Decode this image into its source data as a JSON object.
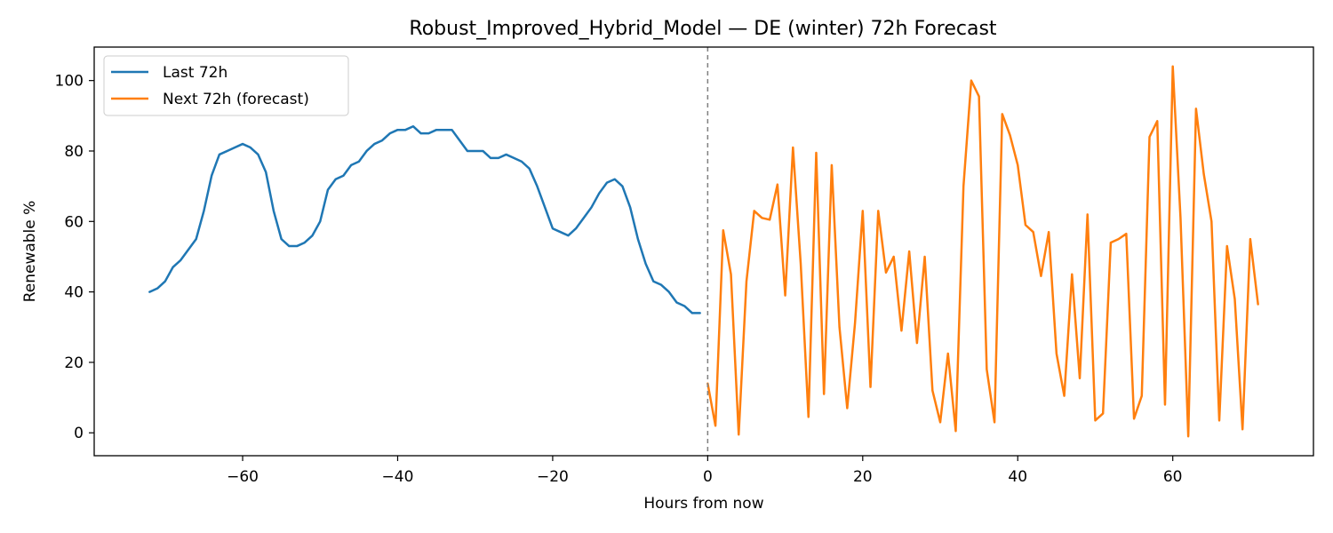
{
  "chart_data": {
    "type": "line",
    "title": "Robust_Improved_Hybrid_Model — DE (winter) 72h Forecast",
    "xlabel": "Hours from now",
    "ylabel": "Renewable %",
    "xlim": [
      -79.15,
      78.15
    ],
    "ylim": [
      -6.5,
      109.5
    ],
    "x_ticks": [
      -60,
      -40,
      -20,
      0,
      20,
      40,
      60
    ],
    "x_tick_labels": [
      "−60",
      "−40",
      "−20",
      "0",
      "20",
      "40",
      "60"
    ],
    "y_ticks": [
      0,
      20,
      40,
      60,
      80,
      100
    ],
    "y_tick_labels": [
      "0",
      "20",
      "40",
      "60",
      "80",
      "100"
    ],
    "grid": false,
    "legend_position": "top-left",
    "now_line": {
      "x": 0,
      "style": "dashed",
      "color": "#808080"
    },
    "series": [
      {
        "name": "Last 72h",
        "color": "#1f77b4",
        "x_start": -72,
        "step": 1,
        "values": [
          40,
          41,
          43,
          47,
          49,
          52,
          55,
          63,
          73,
          79,
          80,
          81,
          82,
          81,
          79,
          74,
          63,
          55,
          53,
          53,
          54,
          56,
          60,
          69,
          72,
          73,
          76,
          77,
          80,
          82,
          83,
          85,
          86,
          86,
          87,
          85,
          85,
          86,
          86,
          86,
          83,
          80,
          80,
          80,
          78,
          78,
          79,
          78,
          77,
          75,
          70,
          64,
          58,
          57,
          56,
          58,
          61,
          64,
          68,
          71,
          72,
          70,
          64,
          55,
          48,
          43,
          42,
          40,
          37,
          36,
          34,
          34
        ]
      },
      {
        "name": "Next 72h (forecast)",
        "color": "#ff7f0e",
        "x_start": 0,
        "step": 1,
        "values": [
          14,
          2,
          57.5,
          45,
          -0.5,
          43,
          63,
          61,
          60.5,
          70.5,
          39,
          81,
          48,
          4.5,
          79.5,
          11,
          76,
          30,
          7,
          31,
          63,
          13,
          63,
          45.5,
          50,
          29,
          51.5,
          25.5,
          50,
          12,
          3,
          22.5,
          0.5,
          70,
          100,
          95.5,
          18,
          3,
          90.5,
          84.5,
          76,
          59,
          57,
          44.5,
          57,
          22.5,
          10.5,
          45,
          15.5,
          62,
          3.5,
          5.5,
          54,
          55,
          56.5,
          4,
          10.5,
          84,
          88.5,
          8,
          104,
          61,
          -1,
          92,
          73.5,
          60,
          3.5,
          53,
          38,
          1,
          55,
          36.5
        ]
      }
    ]
  }
}
